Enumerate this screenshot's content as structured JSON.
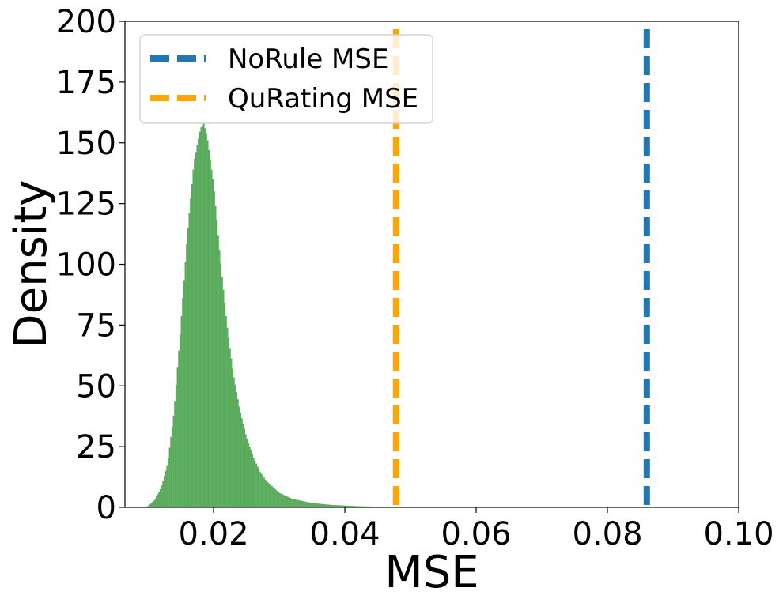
{
  "chart_data": {
    "type": "histogram",
    "xlabel": "MSE",
    "ylabel": "Density",
    "xlim": [
      0.0065,
      0.1
    ],
    "ylim": [
      0,
      200
    ],
    "x_ticks": [
      "0.02",
      "0.04",
      "0.06",
      "0.08",
      "0.10"
    ],
    "x_tick_values": [
      0.02,
      0.04,
      0.06,
      0.08,
      0.1
    ],
    "y_ticks": [
      "0",
      "25",
      "50",
      "75",
      "100",
      "125",
      "150",
      "175",
      "200"
    ],
    "y_tick_values": [
      0,
      25,
      50,
      75,
      100,
      125,
      150,
      175,
      200
    ],
    "grid": false,
    "legend_position": "top-left",
    "histogram": {
      "color": "#5aab5c",
      "bin_width": 0.0002,
      "profile": [
        {
          "x": 0.009,
          "y": 0
        },
        {
          "x": 0.01,
          "y": 0.5
        },
        {
          "x": 0.011,
          "y": 3
        },
        {
          "x": 0.012,
          "y": 8
        },
        {
          "x": 0.013,
          "y": 18
        },
        {
          "x": 0.014,
          "y": 40
        },
        {
          "x": 0.015,
          "y": 75
        },
        {
          "x": 0.016,
          "y": 112
        },
        {
          "x": 0.017,
          "y": 142
        },
        {
          "x": 0.018,
          "y": 156
        },
        {
          "x": 0.0185,
          "y": 158
        },
        {
          "x": 0.019,
          "y": 153
        },
        {
          "x": 0.02,
          "y": 133
        },
        {
          "x": 0.021,
          "y": 103
        },
        {
          "x": 0.022,
          "y": 76
        },
        {
          "x": 0.023,
          "y": 55
        },
        {
          "x": 0.024,
          "y": 40
        },
        {
          "x": 0.025,
          "y": 29
        },
        {
          "x": 0.026,
          "y": 21
        },
        {
          "x": 0.027,
          "y": 15
        },
        {
          "x": 0.028,
          "y": 11
        },
        {
          "x": 0.03,
          "y": 6
        },
        {
          "x": 0.032,
          "y": 3.5
        },
        {
          "x": 0.035,
          "y": 1.8
        },
        {
          "x": 0.038,
          "y": 1.0
        },
        {
          "x": 0.042,
          "y": 0.5
        },
        {
          "x": 0.046,
          "y": 0.2
        },
        {
          "x": 0.05,
          "y": 0
        }
      ]
    },
    "series": [
      {
        "name": "NoRule MSE",
        "type": "vline",
        "x": 0.086,
        "color": "#1f77b4",
        "style": "dashed"
      },
      {
        "name": "QuRating MSE",
        "type": "vline",
        "x": 0.0478,
        "color": "#ffa500",
        "style": "dashed"
      }
    ]
  }
}
